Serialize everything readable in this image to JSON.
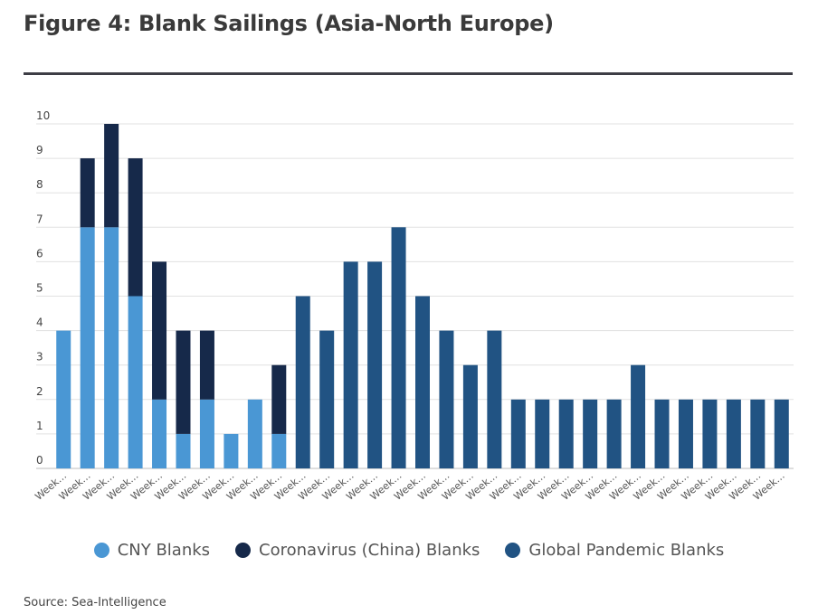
{
  "chart_data": {
    "type": "bar",
    "stacked": true,
    "title": "Figure 4: Blank Sailings (Asia-North Europe)",
    "xlabel": "",
    "ylabel": "",
    "ylim": [
      0,
      10
    ],
    "yticks": [
      0,
      1,
      2,
      3,
      4,
      5,
      6,
      7,
      8,
      9,
      10
    ],
    "grid": true,
    "legend_position": "bottom",
    "categories": [
      "Week…",
      "Week…",
      "Week…",
      "Week…",
      "Week…",
      "Week…",
      "Week…",
      "Week…",
      "Week…",
      "Week…",
      "Week…",
      "Week…",
      "Week…",
      "Week…",
      "Week…",
      "Week…",
      "Week…",
      "Week…",
      "Week…",
      "Week…",
      "Week…",
      "Week…",
      "Week…",
      "Week…",
      "Week…",
      "Week…",
      "Week…",
      "Week…",
      "Week…",
      "Week…",
      "Week…"
    ],
    "series": [
      {
        "name": "CNY Blanks",
        "color": "#4a97d4",
        "values": [
          4,
          7,
          7,
          5,
          2,
          1,
          2,
          1,
          2,
          1,
          0,
          0,
          0,
          0,
          0,
          0,
          0,
          0,
          0,
          0,
          0,
          0,
          0,
          0,
          0,
          0,
          0,
          0,
          0,
          0,
          0
        ]
      },
      {
        "name": "Coronavirus (China) Blanks",
        "color": "#16294a",
        "values": [
          0,
          2,
          3,
          4,
          4,
          3,
          2,
          0,
          0,
          2,
          0,
          0,
          0,
          0,
          0,
          0,
          0,
          0,
          0,
          0,
          0,
          0,
          0,
          0,
          0,
          0,
          0,
          0,
          0,
          0,
          0
        ]
      },
      {
        "name": "Global Pandemic Blanks",
        "color": "#215383",
        "values": [
          0,
          0,
          0,
          0,
          0,
          0,
          0,
          0,
          0,
          0,
          5,
          4,
          6,
          6,
          7,
          5,
          4,
          3,
          4,
          2,
          2,
          2,
          2,
          2,
          3,
          2,
          2,
          2,
          2,
          2,
          2
        ]
      }
    ]
  },
  "legend": {
    "items": [
      {
        "label": "CNY Blanks",
        "color": "#4a97d4"
      },
      {
        "label": "Coronavirus (China) Blanks",
        "color": "#16294a"
      },
      {
        "label": "Global Pandemic Blanks",
        "color": "#215383"
      }
    ]
  },
  "source": "Source: Sea-Intelligence"
}
